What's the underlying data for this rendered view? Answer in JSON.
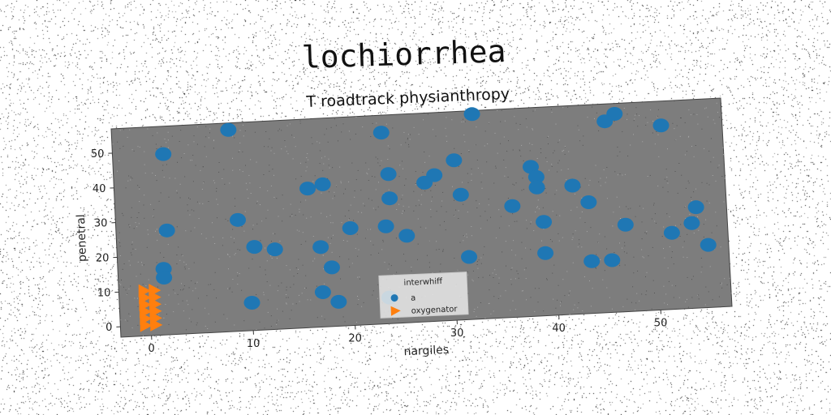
{
  "chart_data": {
    "type": "scatter",
    "title": "lochiorrhea",
    "subtitle": "T roadtrack physianthropy",
    "xlabel": "nargiles",
    "ylabel": "penetral",
    "xlim": [
      -3,
      57
    ],
    "ylim": [
      -3,
      57
    ],
    "xticks": [
      0,
      10,
      20,
      30,
      40,
      50
    ],
    "yticks": [
      0,
      10,
      20,
      30,
      40,
      50
    ],
    "grid": false,
    "legend": {
      "title": "interwhiff",
      "position": "lower-center",
      "entries": [
        "a",
        "oxygenator"
      ]
    },
    "series": [
      {
        "name": "a",
        "marker": "circle",
        "color": "#1f77b4",
        "points": [
          [
            2,
            49
          ],
          [
            8.5,
            55
          ],
          [
            23.5,
            52
          ],
          [
            32.5,
            56
          ],
          [
            46.5,
            54
          ],
          [
            45.5,
            52
          ],
          [
            51,
            50
          ],
          [
            24,
            40
          ],
          [
            28.5,
            39
          ],
          [
            30.5,
            43
          ],
          [
            38,
            40
          ],
          [
            38.5,
            37
          ],
          [
            38.5,
            34
          ],
          [
            42,
            34
          ],
          [
            16,
            37
          ],
          [
            17.5,
            38
          ],
          [
            27.5,
            37
          ],
          [
            24,
            33
          ],
          [
            31,
            33
          ],
          [
            9,
            29
          ],
          [
            2,
            27
          ],
          [
            36,
            29
          ],
          [
            43.5,
            29
          ],
          [
            20,
            25
          ],
          [
            23.5,
            25
          ],
          [
            25.5,
            22
          ],
          [
            39,
            24
          ],
          [
            47,
            22
          ],
          [
            54,
            26
          ],
          [
            53.5,
            21.5
          ],
          [
            51.5,
            19
          ],
          [
            10.5,
            21
          ],
          [
            12.5,
            20
          ],
          [
            17,
            20
          ],
          [
            55,
            15
          ],
          [
            1.5,
            16
          ],
          [
            1.5,
            13.5
          ],
          [
            18,
            14
          ],
          [
            31.5,
            15
          ],
          [
            39,
            15
          ],
          [
            43.5,
            12
          ],
          [
            45.5,
            12
          ],
          [
            17,
            7
          ],
          [
            10,
            5
          ],
          [
            18.5,
            4
          ],
          [
            23.5,
            4.5
          ]
        ]
      },
      {
        "name": "oxygenator",
        "marker": "triangle-right",
        "color": "#ff7f0e",
        "points": [
          [
            -0.5,
            10
          ],
          [
            -0.5,
            8
          ],
          [
            -0.5,
            6
          ],
          [
            -0.5,
            4
          ],
          [
            -0.5,
            2
          ],
          [
            -0.5,
            0
          ],
          [
            0.5,
            10
          ],
          [
            0.5,
            8
          ],
          [
            0.5,
            6
          ],
          [
            0.5,
            4
          ],
          [
            0.5,
            2
          ],
          [
            0.5,
            0
          ]
        ]
      }
    ]
  }
}
